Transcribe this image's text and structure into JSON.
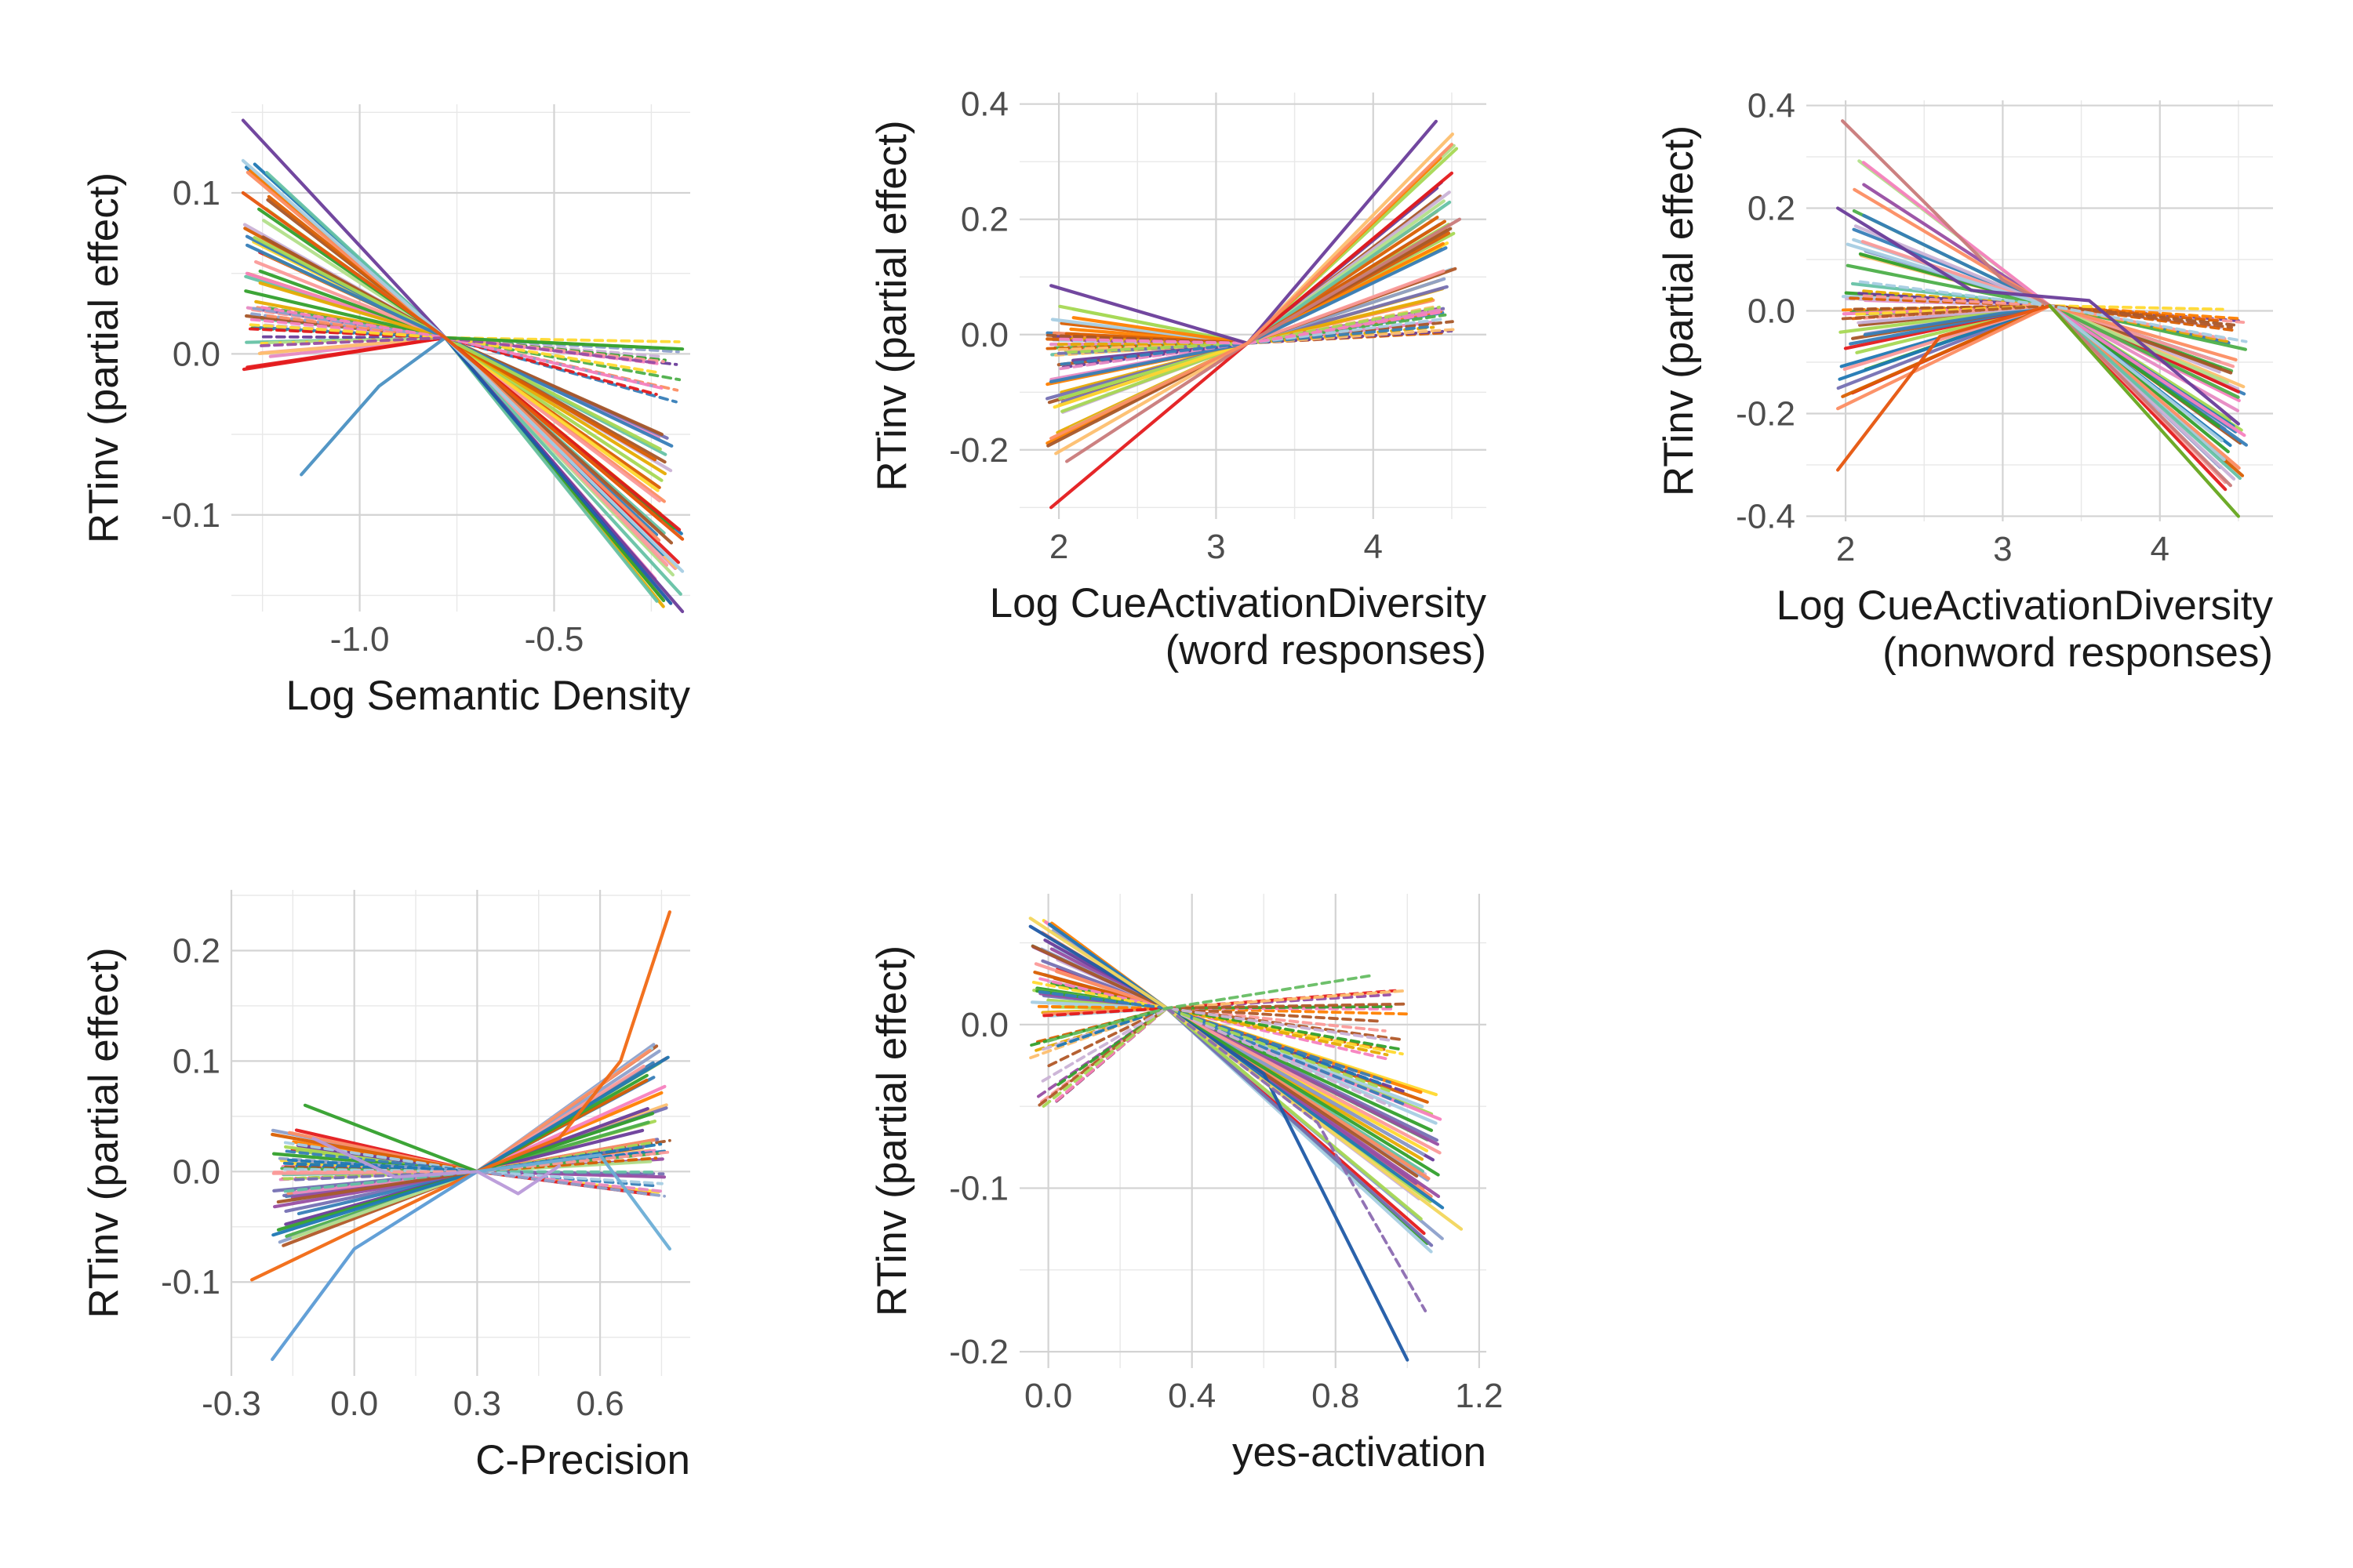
{
  "figure": {
    "palette": [
      "#e41a1c",
      "#377eb8",
      "#4daf4a",
      "#984ea3",
      "#ff7f00",
      "#ffd92f",
      "#a65628",
      "#f781bf",
      "#66c2a5",
      "#fc8d62",
      "#8da0cb",
      "#e78ac3",
      "#a6d854",
      "#b15928",
      "#6a3d9a",
      "#1f78b4",
      "#33a02c",
      "#fb9a99",
      "#fdbf6f",
      "#cab2d6",
      "#b2df8a",
      "#a6cee3",
      "#e6ab02",
      "#d95f02",
      "#7570b3"
    ]
  },
  "chart_data": [
    {
      "type": "line",
      "title": "",
      "xlabel": [
        "Log Semantic Density"
      ],
      "ylabel": "RTinv (partial effect)",
      "xlim": [
        -1.33,
        -0.15
      ],
      "ylim": [
        -0.16,
        0.155
      ],
      "xticks": [
        {
          "v": -1.0,
          "label": "-1.0"
        },
        {
          "v": -0.5,
          "label": "-0.5"
        }
      ],
      "yticks": [
        {
          "v": 0.1,
          "label": "0.1"
        },
        {
          "v": 0.0,
          "label": "0.0"
        },
        {
          "v": -0.1,
          "label": "-0.1"
        }
      ],
      "pivot": {
        "x": -0.78,
        "y": 0.01
      },
      "families": [
        {
          "style": "solid",
          "n": 38,
          "x": [
            -1.3,
            -0.17
          ],
          "y_left": [
            -0.01,
            0.12
          ],
          "y_right": [
            -0.16,
            -0.05
          ]
        },
        {
          "style": "dashed",
          "n": 16,
          "x": [
            -1.3,
            -0.17
          ],
          "y_left": [
            0.005,
            0.03
          ],
          "y_right": [
            -0.03,
            0.01
          ]
        }
      ],
      "curves": [
        {
          "name": "steep-purple",
          "style": "solid",
          "color": "#6a3d9a",
          "x": [
            -1.3,
            -0.78,
            -0.17
          ],
          "y": [
            0.145,
            0.01,
            -0.16
          ]
        },
        {
          "name": "short-blue",
          "style": "solid",
          "color": "#4a90c2",
          "x": [
            -1.15,
            -0.95,
            -0.78
          ],
          "y": [
            -0.075,
            -0.02,
            0.01
          ]
        },
        {
          "name": "dark-blue",
          "style": "solid",
          "color": "#1f5aa6",
          "x": [
            -0.78,
            -0.2
          ],
          "y": [
            0.01,
            -0.155
          ]
        },
        {
          "name": "green-up",
          "style": "solid",
          "color": "#33a02c",
          "x": [
            -0.78,
            -0.17
          ],
          "y": [
            0.01,
            0.003
          ]
        },
        {
          "name": "light-blue",
          "style": "solid",
          "color": "#a6cee3",
          "x": [
            -1.3,
            -0.78,
            -0.17
          ],
          "y": [
            0.12,
            0.01,
            -0.135
          ]
        },
        {
          "name": "orange-red",
          "style": "solid",
          "color": "#e6550d",
          "x": [
            -1.3,
            -0.78,
            -0.17
          ],
          "y": [
            0.1,
            0.01,
            -0.115
          ]
        }
      ]
    },
    {
      "type": "line",
      "title": "",
      "xlabel": [
        "Log CueActivationDiversity",
        "(word responses)"
      ],
      "ylabel": "RTinv (partial effect)",
      "xlim": [
        1.75,
        4.72
      ],
      "ylim": [
        -0.32,
        0.42
      ],
      "xticks": [
        {
          "v": 2,
          "label": "2"
        },
        {
          "v": 3,
          "label": "3"
        },
        {
          "v": 4,
          "label": "4"
        }
      ],
      "yticks": [
        {
          "v": 0.4,
          "label": "0.4"
        },
        {
          "v": 0.2,
          "label": "0.2"
        },
        {
          "v": 0.0,
          "label": "0.0"
        },
        {
          "v": -0.2,
          "label": "-0.2"
        }
      ],
      "pivot": {
        "x": 3.2,
        "y": -0.015
      },
      "families": [
        {
          "style": "solid",
          "n": 40,
          "x": [
            1.92,
            4.55
          ],
          "y_left": [
            -0.22,
            0.05
          ],
          "y_right": [
            0.02,
            0.35
          ]
        },
        {
          "style": "dashed",
          "n": 14,
          "x": [
            1.92,
            4.55
          ],
          "y_left": [
            -0.06,
            0.0
          ],
          "y_right": [
            0.0,
            0.06
          ]
        }
      ],
      "curves": [
        {
          "name": "red-low",
          "style": "solid",
          "color": "#e41a1c",
          "x": [
            1.95,
            3.2,
            4.5
          ],
          "y": [
            -0.3,
            -0.015,
            0.28
          ]
        },
        {
          "name": "purple-high",
          "style": "solid",
          "color": "#6a3d9a",
          "x": [
            1.95,
            3.2,
            4.4
          ],
          "y": [
            0.085,
            -0.015,
            0.37
          ]
        },
        {
          "name": "pink-mid",
          "style": "solid",
          "color": "#c97a7a",
          "x": [
            2.05,
            3.2,
            4.55
          ],
          "y": [
            -0.22,
            -0.015,
            0.2
          ]
        },
        {
          "name": "orange-top",
          "style": "solid",
          "color": "#fc8d62",
          "x": [
            1.95,
            3.2,
            4.5
          ],
          "y": [
            -0.18,
            -0.015,
            0.33
          ]
        }
      ]
    },
    {
      "type": "line",
      "title": "",
      "xlabel": [
        "Log CueActivationDiversity",
        "(nonword responses)"
      ],
      "ylabel": "RTinv (partial effect)",
      "xlim": [
        1.75,
        4.72
      ],
      "ylim": [
        -0.41,
        0.41
      ],
      "xticks": [
        {
          "v": 2,
          "label": "2"
        },
        {
          "v": 3,
          "label": "3"
        },
        {
          "v": 4,
          "label": "4"
        }
      ],
      "yticks": [
        {
          "v": 0.4,
          "label": "0.4"
        },
        {
          "v": 0.2,
          "label": "0.2"
        },
        {
          "v": 0.0,
          "label": "0.0"
        },
        {
          "v": -0.2,
          "label": "-0.2"
        },
        {
          "v": -0.4,
          "label": "-0.4"
        }
      ],
      "pivot": {
        "x": 3.3,
        "y": 0.01
      },
      "families": [
        {
          "style": "solid",
          "n": 40,
          "x": [
            1.95,
            4.55
          ],
          "y_left": [
            -0.2,
            0.3
          ],
          "y_right": [
            -0.35,
            -0.06
          ]
        },
        {
          "style": "dashed",
          "n": 12,
          "x": [
            1.95,
            4.55
          ],
          "y_left": [
            -0.02,
            0.08
          ],
          "y_right": [
            -0.06,
            0.02
          ]
        }
      ],
      "curves": [
        {
          "name": "pink-top",
          "style": "solid",
          "color": "#c97a7a",
          "x": [
            1.98,
            3.0,
            3.3,
            4.45
          ],
          "y": [
            0.37,
            0.06,
            0.01,
            -0.34
          ]
        },
        {
          "name": "orange-bottom",
          "style": "solid",
          "color": "#e6550d",
          "x": [
            1.95,
            2.6,
            3.3
          ],
          "y": [
            -0.31,
            -0.05,
            0.01
          ]
        },
        {
          "name": "green-steep",
          "style": "solid",
          "color": "#66a61e",
          "x": [
            3.3,
            4.5
          ],
          "y": [
            0.01,
            -0.4
          ]
        },
        {
          "name": "purple-hump",
          "style": "solid",
          "color": "#6a3d9a",
          "x": [
            1.95,
            2.8,
            3.55,
            4.5
          ],
          "y": [
            0.2,
            0.04,
            0.02,
            -0.22
          ]
        }
      ]
    },
    {
      "type": "line",
      "title": "",
      "xlabel": [
        "C-Precision"
      ],
      "ylabel": "RTinv (partial effect)",
      "xlim": [
        -0.3,
        0.82
      ],
      "ylim": [
        -0.185,
        0.255
      ],
      "xticks": [
        {
          "v": -0.3,
          "label": "-0.3"
        },
        {
          "v": 0.0,
          "label": "0.0"
        },
        {
          "v": 0.3,
          "label": "0.3"
        },
        {
          "v": 0.6,
          "label": "0.6"
        }
      ],
      "yticks": [
        {
          "v": 0.2,
          "label": "0.2"
        },
        {
          "v": 0.1,
          "label": "0.1"
        },
        {
          "v": 0.0,
          "label": "0.0"
        },
        {
          "v": -0.1,
          "label": "-0.1"
        }
      ],
      "pivot": {
        "x": 0.3,
        "y": 0.0
      },
      "families": [
        {
          "style": "solid",
          "n": 36,
          "x": [
            -0.2,
            0.77
          ],
          "y_left": [
            -0.07,
            0.04
          ],
          "y_right": [
            -0.03,
            0.12
          ]
        },
        {
          "style": "dashed",
          "n": 16,
          "x": [
            -0.2,
            0.77
          ],
          "y_left": [
            -0.02,
            0.03
          ],
          "y_right": [
            -0.025,
            0.03
          ]
        }
      ],
      "curves": [
        {
          "name": "orange-rise",
          "style": "solid",
          "color": "#f16913",
          "x": [
            -0.25,
            0.3,
            0.5,
            0.65,
            0.77
          ],
          "y": [
            -0.098,
            0.0,
            0.03,
            0.1,
            0.235
          ]
        },
        {
          "name": "blue-low",
          "style": "solid",
          "color": "#5b9bd5",
          "x": [
            -0.2,
            0.0,
            0.3
          ],
          "y": [
            -0.17,
            -0.07,
            0.0
          ]
        },
        {
          "name": "green-top",
          "style": "solid",
          "color": "#33a02c",
          "x": [
            -0.12,
            0.3
          ],
          "y": [
            0.06,
            0.0
          ]
        },
        {
          "name": "blue-drop",
          "style": "solid",
          "color": "#6baed6",
          "x": [
            0.3,
            0.6,
            0.77
          ],
          "y": [
            0.0,
            0.015,
            -0.07
          ]
        },
        {
          "name": "lavender-wave",
          "style": "solid",
          "color": "#b99ad9",
          "x": [
            -0.1,
            0.1,
            0.3,
            0.4,
            0.5
          ],
          "y": [
            0.03,
            -0.005,
            0.0,
            -0.02,
            0.005
          ]
        }
      ]
    },
    {
      "type": "line",
      "title": "",
      "xlabel": [
        "yes-activation"
      ],
      "ylabel": "RTinv (partial effect)",
      "xlim": [
        -0.08,
        1.22
      ],
      "ylim": [
        -0.21,
        0.08
      ],
      "xticks": [
        {
          "v": 0.0,
          "label": "0.0"
        },
        {
          "v": 0.4,
          "label": "0.4"
        },
        {
          "v": 0.8,
          "label": "0.8"
        },
        {
          "v": 1.2,
          "label": "1.2"
        }
      ],
      "yticks": [
        {
          "v": 0.0,
          "label": "0.0"
        },
        {
          "v": -0.1,
          "label": "-0.1"
        },
        {
          "v": -0.2,
          "label": "-0.2"
        }
      ],
      "pivot": {
        "x": 0.33,
        "y": 0.01
      },
      "families": [
        {
          "style": "solid",
          "n": 36,
          "x": [
            -0.05,
            1.1
          ],
          "y_left": [
            0.0,
            0.065
          ],
          "y_right": [
            -0.14,
            -0.04
          ]
        },
        {
          "style": "dashed",
          "n": 22,
          "x": [
            -0.05,
            1.0
          ],
          "y_left": [
            -0.05,
            0.03
          ],
          "y_right": [
            -0.05,
            0.025
          ]
        }
      ],
      "curves": [
        {
          "name": "blue-steep",
          "style": "solid",
          "color": "#1f5aa6",
          "x": [
            -0.05,
            0.33,
            0.6,
            1.0
          ],
          "y": [
            0.06,
            0.01,
            -0.03,
            -0.205
          ]
        },
        {
          "name": "yellow-long",
          "style": "solid",
          "color": "#f2d65c",
          "x": [
            -0.05,
            0.33,
            1.15
          ],
          "y": [
            0.065,
            0.01,
            -0.125
          ]
        },
        {
          "name": "purple-dash",
          "style": "dashed",
          "color": "#8c6bb1",
          "x": [
            0.33,
            0.75,
            1.05
          ],
          "y": [
            0.01,
            -0.06,
            -0.175
          ]
        },
        {
          "name": "green-dash",
          "style": "dashed",
          "color": "#66bd63",
          "x": [
            0.0,
            0.33,
            0.9
          ],
          "y": [
            -0.01,
            0.01,
            0.03
          ]
        }
      ]
    }
  ]
}
